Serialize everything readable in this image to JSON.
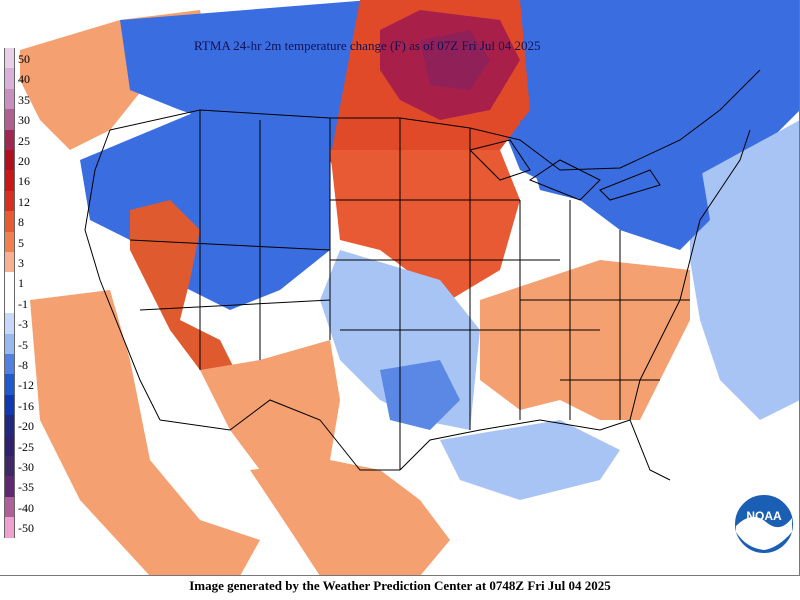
{
  "title": "RTMA 24-hr 2m temperature change (F) as of 07Z Fri Jul 04 2025",
  "footer": "Image generated by the Weather Prediction Center at 0748Z Fri Jul 04 2025",
  "logo_text": "NOAA",
  "legend": {
    "labels": [
      "50",
      "40",
      "35",
      "30",
      "25",
      "20",
      "16",
      "12",
      "8",
      "5",
      "3",
      "1",
      "-1",
      "-3",
      "-5",
      "-8",
      "-12",
      "-16",
      "-20",
      "-25",
      "-30",
      "-35",
      "-40",
      "-50"
    ],
    "colors": [
      "#e8d0e8",
      "#d8b0d8",
      "#c890c0",
      "#b06090",
      "#a02850",
      "#b01020",
      "#c81818",
      "#d83020",
      "#e85a30",
      "#f08050",
      "#f8b090",
      "#ffffff",
      "#ffffff",
      "#c8d8f8",
      "#98b8f0",
      "#5080e0",
      "#2058d0",
      "#1038b0",
      "#202880",
      "#302070",
      "#402868",
      "#602870",
      "#b06098",
      "#f0a0d0"
    ]
  },
  "colors": {
    "ocean": "#ffffff",
    "strong_warm": "#d83a20",
    "warm": "#f49a6a",
    "hot": "#a8204a",
    "cool": "#a8c4f4",
    "cold": "#2c64d8",
    "neutral": "#ffffff",
    "boundaries": "#000000"
  }
}
